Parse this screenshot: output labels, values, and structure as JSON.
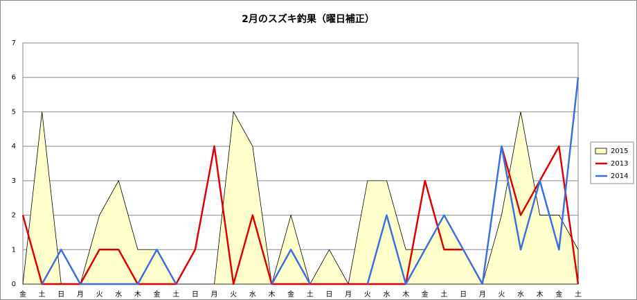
{
  "chart_data": {
    "type": "line",
    "title": "2月のスズキ釣果（曜日補正）",
    "categories": [
      "金",
      "土",
      "日",
      "月",
      "火",
      "水",
      "木",
      "金",
      "土",
      "日",
      "月",
      "火",
      "水",
      "木",
      "金",
      "土",
      "日",
      "月",
      "火",
      "水",
      "木",
      "金",
      "土",
      "日",
      "月",
      "火",
      "水",
      "木",
      "金",
      "土"
    ],
    "series": [
      {
        "name": "2015",
        "style": "area",
        "color": "#ffffcc",
        "values": [
          0,
          5,
          0,
          0,
          2,
          3,
          1,
          1,
          0,
          0,
          0,
          5,
          4,
          0,
          2,
          0,
          1,
          0,
          3,
          3,
          1,
          1,
          2,
          1,
          0,
          2,
          5,
          2,
          2,
          1
        ]
      },
      {
        "name": "2013",
        "style": "line",
        "color": "#e00000",
        "values": [
          2,
          0,
          0,
          0,
          1,
          1,
          0,
          0,
          0,
          1,
          4,
          0,
          2,
          0,
          0,
          0,
          0,
          0,
          0,
          0,
          0,
          3,
          1,
          1,
          null,
          4,
          2,
          3,
          4,
          0
        ]
      },
      {
        "name": "2014",
        "style": "line",
        "color": "#3a6fe0",
        "values": [
          null,
          0,
          1,
          0,
          0,
          0,
          0,
          1,
          0,
          null,
          null,
          null,
          null,
          0,
          1,
          0,
          null,
          null,
          0,
          2,
          0,
          1,
          2,
          1,
          0,
          4,
          1,
          3,
          1,
          6
        ]
      }
    ],
    "ylim": [
      0,
      7
    ],
    "yticks": [
      0,
      1,
      2,
      3,
      4,
      5,
      6,
      7
    ],
    "grid": true,
    "legend": "right"
  }
}
